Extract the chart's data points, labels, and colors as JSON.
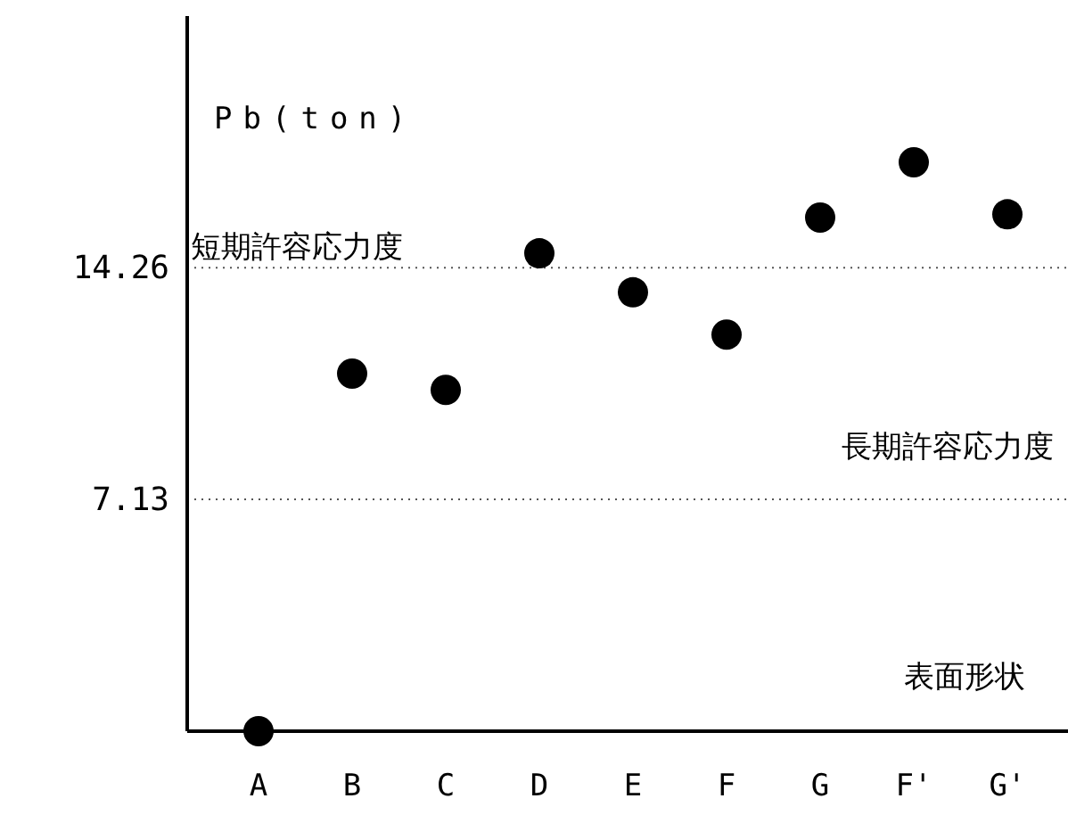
{
  "chart_data": {
    "type": "scatter",
    "ylabel": "Pb(ton)",
    "categories": [
      "A",
      "B",
      "C",
      "D",
      "E",
      "F",
      "G",
      "F'",
      "G'"
    ],
    "series": [
      {
        "color": "#000000",
        "values": [
          0,
          11.0,
          10.5,
          14.7,
          13.5,
          12.2,
          15.8,
          17.5,
          15.9
        ]
      }
    ],
    "ylim": [
      0,
      22
    ],
    "yticks": [
      7.13,
      14.26
    ],
    "marker": "circle",
    "ref_lines": [
      {
        "axis": "y",
        "value": 14.26,
        "label": "短期許容応力度",
        "line_style": "dotted"
      },
      {
        "axis": "y",
        "value": 7.13,
        "label": "長期許容応力度",
        "line_style": "dotted"
      }
    ],
    "annotations": [
      "表面形状"
    ]
  }
}
